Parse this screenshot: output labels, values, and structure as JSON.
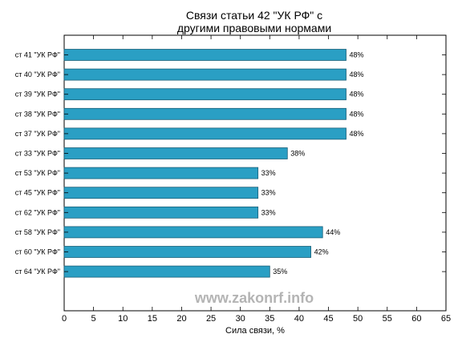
{
  "chart_data": {
    "type": "bar",
    "orientation": "horizontal",
    "title_lines": [
      "Связи статьи 42 \"УК РФ\" с",
      "другими правовыми нормами"
    ],
    "xlabel": "Сила связи, %",
    "ylabel": "",
    "xlim": [
      0,
      65
    ],
    "xticks": [
      0,
      5,
      10,
      15,
      20,
      25,
      30,
      35,
      40,
      45,
      50,
      55,
      60,
      65
    ],
    "categories": [
      "ст 41 \"УК РФ\"",
      "ст 40 \"УК РФ\"",
      "ст 39 \"УК РФ\"",
      "ст 38 \"УК РФ\"",
      "ст 37 \"УК РФ\"",
      "ст 33 \"УК РФ\"",
      "ст 53 \"УК РФ\"",
      "ст 45 \"УК РФ\"",
      "ст 62 \"УК РФ\"",
      "ст 58 \"УК РФ\"",
      "ст 60 \"УК РФ\"",
      "ст 64 \"УК РФ\""
    ],
    "values": [
      48,
      48,
      48,
      48,
      48,
      38,
      33,
      33,
      33,
      44,
      42,
      35
    ],
    "value_labels": [
      "48%",
      "48%",
      "48%",
      "48%",
      "48%",
      "38%",
      "33%",
      "33%",
      "33%",
      "44%",
      "42%",
      "35%"
    ],
    "bar_color": "#2a9fc4",
    "bar_edge_color": "#1a5f78",
    "grid": false,
    "legend": "none"
  },
  "watermark": "www.zakonrf.info"
}
